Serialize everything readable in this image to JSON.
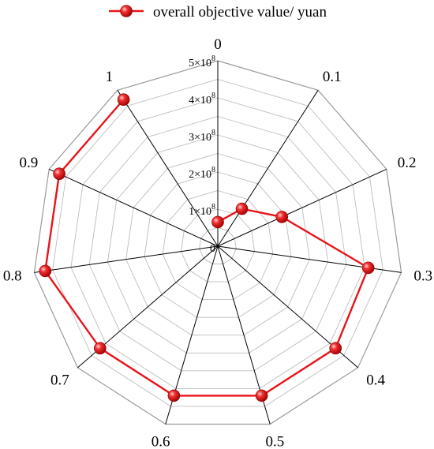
{
  "chart_data": {
    "type": "radar",
    "categories": [
      "0",
      "0.1",
      "0.2",
      "0.3",
      "0.4",
      "0.5",
      "0.6",
      "0.7",
      "0.8",
      "0.9",
      "1"
    ],
    "radial_range": [
      0,
      500000000
    ],
    "radial_ticks": [
      {
        "value": 0,
        "mantissa": "0",
        "exponent": ""
      },
      {
        "value": 100000000,
        "mantissa": "1×10",
        "exponent": "8"
      },
      {
        "value": 200000000,
        "mantissa": "2×10",
        "exponent": "8"
      },
      {
        "value": 300000000,
        "mantissa": "3×10",
        "exponent": "8"
      },
      {
        "value": 400000000,
        "mantissa": "4×10",
        "exponent": "8"
      },
      {
        "value": 500000000,
        "mantissa": "5×10",
        "exponent": "8"
      }
    ],
    "series": [
      {
        "name": "overall objective value/ yuan",
        "color": "#e8141b",
        "values": [
          65000000,
          120000000,
          190000000,
          410000000,
          420000000,
          420000000,
          420000000,
          420000000,
          470000000,
          470000000,
          470000000
        ]
      }
    ],
    "grid": true,
    "legend": "top-center"
  }
}
